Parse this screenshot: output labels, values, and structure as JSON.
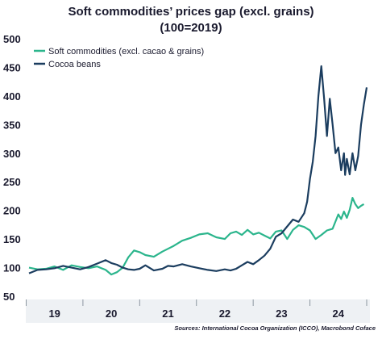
{
  "title_line_1": "Soft commodities’ prices gap (excl. grains)",
  "title_line_2": "(100=2019)",
  "source": "Sources: International Cocoa Organization (ICCO), Macrobond Coface",
  "chart_data": {
    "type": "line",
    "title": "Soft commodities’ prices gap (excl. grains) (100=2019)",
    "xlabel": "",
    "ylabel": "",
    "xlim": [
      2018.55,
      2024.5
    ],
    "ylim": [
      50,
      500
    ],
    "y_ticks": [
      50,
      100,
      150,
      200,
      250,
      300,
      350,
      400,
      450,
      500
    ],
    "x_ticks": [
      2019,
      2020,
      2021,
      2022,
      2023,
      2024
    ],
    "x_tick_labels": [
      "19",
      "20",
      "21",
      "22",
      "23",
      "24"
    ],
    "grid": false,
    "legend_position": "top-left",
    "series": [
      {
        "name": "Soft commodities (excl. cacao & grains)",
        "color": "#2bb58c",
        "x": [
          2018.55,
          2018.7,
          2018.85,
          2019.0,
          2019.15,
          2019.3,
          2019.45,
          2019.6,
          2019.75,
          2019.9,
          2020.0,
          2020.1,
          2020.2,
          2020.3,
          2020.4,
          2020.5,
          2020.6,
          2020.75,
          2020.9,
          2021.0,
          2021.1,
          2021.25,
          2021.4,
          2021.55,
          2021.7,
          2021.85,
          2022.0,
          2022.1,
          2022.2,
          2022.3,
          2022.4,
          2022.5,
          2022.6,
          2022.7,
          2022.8,
          2022.9,
          2023.0,
          2023.1,
          2023.2,
          2023.3,
          2023.4,
          2023.5,
          2023.6,
          2023.7,
          2023.8,
          2023.9,
          2024.0,
          2024.05,
          2024.1,
          2024.15,
          2024.2,
          2024.25,
          2024.3,
          2024.35,
          2024.4,
          2024.45
        ],
        "values": [
          100,
          97,
          98,
          102,
          96,
          104,
          101,
          99,
          102,
          96,
          88,
          92,
          100,
          118,
          130,
          127,
          122,
          119,
          128,
          133,
          138,
          147,
          152,
          158,
          160,
          153,
          150,
          160,
          163,
          157,
          166,
          158,
          161,
          156,
          151,
          163,
          165,
          150,
          166,
          174,
          171,
          165,
          150,
          157,
          165,
          168,
          193,
          185,
          198,
          187,
          201,
          222,
          211,
          204,
          208,
          211
        ]
      },
      {
        "name": "Cocoa beans",
        "color": "#1b3d5f",
        "x": [
          2018.55,
          2018.7,
          2018.85,
          2019.0,
          2019.15,
          2019.3,
          2019.45,
          2019.6,
          2019.75,
          2019.9,
          2020.0,
          2020.1,
          2020.2,
          2020.3,
          2020.4,
          2020.5,
          2020.6,
          2020.75,
          2020.9,
          2021.0,
          2021.1,
          2021.25,
          2021.4,
          2021.55,
          2021.7,
          2021.85,
          2022.0,
          2022.1,
          2022.2,
          2022.3,
          2022.4,
          2022.5,
          2022.6,
          2022.7,
          2022.8,
          2022.9,
          2023.0,
          2023.1,
          2023.2,
          2023.3,
          2023.4,
          2023.45,
          2023.5,
          2023.55,
          2023.6,
          2023.65,
          2023.7,
          2023.75,
          2023.8,
          2023.85,
          2023.9,
          2023.95,
          2024.0,
          2024.05,
          2024.1,
          2024.12,
          2024.15,
          2024.2,
          2024.25,
          2024.3,
          2024.35,
          2024.4,
          2024.45,
          2024.5
        ],
        "values": [
          90,
          96,
          97,
          99,
          103,
          100,
          97,
          101,
          107,
          113,
          108,
          105,
          100,
          97,
          96,
          98,
          104,
          95,
          98,
          103,
          102,
          106,
          102,
          99,
          96,
          94,
          97,
          95,
          98,
          104,
          110,
          106,
          113,
          121,
          133,
          154,
          160,
          172,
          184,
          180,
          195,
          215,
          255,
          285,
          330,
          400,
          452,
          395,
          330,
          395,
          350,
          300,
          310,
          270,
          300,
          262,
          290,
          263,
          300,
          270,
          295,
          350,
          385,
          415
        ]
      }
    ]
  }
}
